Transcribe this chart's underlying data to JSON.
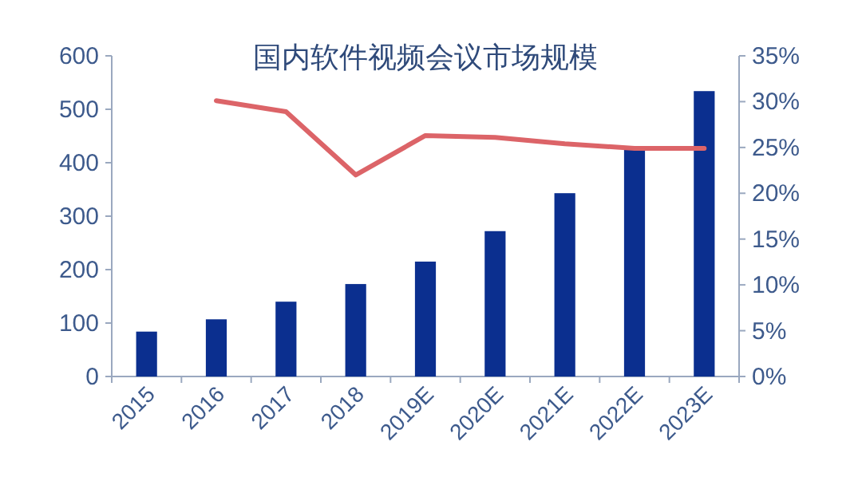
{
  "chart_data": {
    "type": "bar",
    "title": "国内软件视频会议市场规模",
    "categories": [
      "2015",
      "2016",
      "2017",
      "2018",
      "2019E",
      "2020E",
      "2021E",
      "2022E",
      "2023E"
    ],
    "series": [
      {
        "color": "#0b2f8f",
        "values": [
          84,
          107,
          140,
          173,
          215,
          272,
          343,
          427,
          534
        ]
      },
      {
        "type": "line",
        "axis": "y2",
        "color": "#dc6468",
        "values": [
          null,
          30.1,
          28.9,
          22.0,
          26.3,
          26.1,
          25.4,
          24.9,
          24.9
        ]
      }
    ],
    "ylim": [
      0,
      600
    ],
    "yticks": [
      0,
      100,
      200,
      300,
      400,
      500,
      600
    ],
    "y2lim": [
      0,
      35
    ],
    "y2ticks": [
      {
        "value": 0,
        "label": "0%"
      },
      {
        "value": 5,
        "label": "5%"
      },
      {
        "value": 10,
        "label": "10%"
      },
      {
        "value": 15,
        "label": "15%"
      },
      {
        "value": 20,
        "label": "20%"
      },
      {
        "value": 25,
        "label": "25%"
      },
      {
        "value": 30,
        "label": "30%"
      },
      {
        "value": 35,
        "label": "35%"
      }
    ]
  }
}
